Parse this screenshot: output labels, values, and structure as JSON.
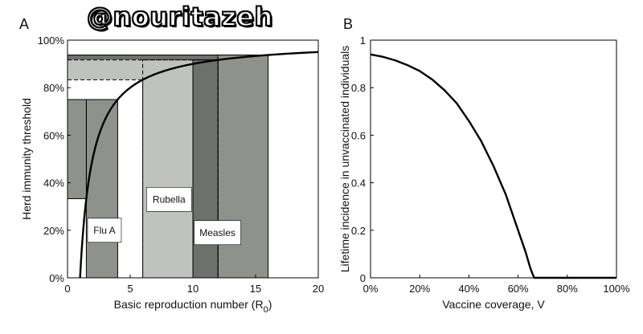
{
  "watermark": "@nouritazeh",
  "chart_data": [
    {
      "panel": "A",
      "type": "line",
      "xlabel": "Basic reproduction number (R",
      "xlabel_subscript": "0",
      "xlabel_close": ")",
      "ylabel": "Herd immunity threshold",
      "xlim": [
        0,
        20
      ],
      "ylim": [
        0,
        1
      ],
      "x_ticks": [
        "0",
        "5",
        "10",
        "15",
        "20"
      ],
      "y_ticks": [
        "0%",
        "20%",
        "40%",
        "60%",
        "80%",
        "100%"
      ],
      "curve": {
        "name": "",
        "formula": "1 - 1/R0"
      },
      "regions": [
        {
          "label": "Flu A",
          "r0_min": 1.5,
          "r0_max": 4,
          "threshold_min": 0.333,
          "threshold_max": 0.75,
          "color": "#8f928c",
          "dashed": false
        },
        {
          "label": "Rubella",
          "r0_min": 6,
          "r0_max": 12,
          "threshold_min": 0.833,
          "threshold_max": 0.917,
          "color": "#c0c2bf",
          "dashed": true
        },
        {
          "label": "Measles",
          "r0_min": 12,
          "r0_max": 16,
          "threshold_min": 0.917,
          "threshold_max": 0.9375,
          "color": "#8f928c",
          "dashed": false
        }
      ],
      "extra_band": {
        "r0_min": 10,
        "r0_max": 12,
        "color": "#6e706d"
      }
    },
    {
      "panel": "B",
      "type": "line",
      "xlabel": "Vaccine coverage, V",
      "ylabel": "Lifetime incidence in unvaccinated individuals",
      "xlim": [
        0,
        1
      ],
      "ylim": [
        0,
        1
      ],
      "x_ticks": [
        "0%",
        "20%",
        "40%",
        "60%",
        "80%",
        "100%"
      ],
      "y_ticks": [
        "0",
        "0.2",
        "0.4",
        "0.6",
        "0.8",
        "1"
      ],
      "series": [
        {
          "x": [
            0,
            0.05,
            0.1,
            0.15,
            0.2,
            0.25,
            0.3,
            0.35,
            0.4,
            0.45,
            0.5,
            0.55,
            0.6,
            0.63,
            0.65,
            0.665,
            0.7,
            0.8,
            0.9,
            1.0
          ],
          "y": [
            0.94,
            0.93,
            0.915,
            0.895,
            0.87,
            0.835,
            0.79,
            0.735,
            0.66,
            0.575,
            0.47,
            0.35,
            0.2,
            0.11,
            0.04,
            0,
            0,
            0,
            0,
            0
          ]
        }
      ]
    }
  ]
}
